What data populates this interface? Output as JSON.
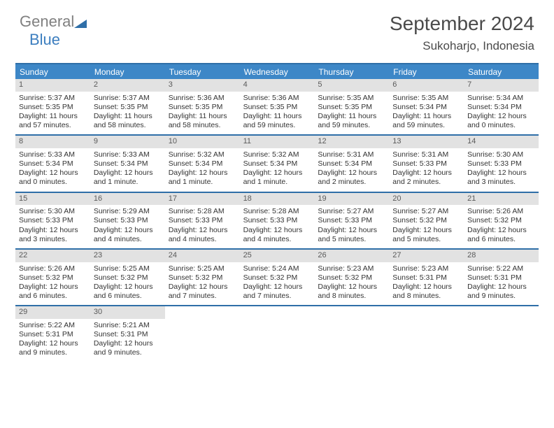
{
  "brand": {
    "part1": "General",
    "part2": "Blue"
  },
  "title": {
    "month": "September 2024",
    "location": "Sukoharjo, Indonesia"
  },
  "colors": {
    "rule": "#2f6fa8",
    "headerbg": "#3d87c7",
    "daynumbg": "#e2e2e2",
    "brandblue": "#3c7ebf",
    "brandgray": "#808080"
  },
  "day_names": [
    "Sunday",
    "Monday",
    "Tuesday",
    "Wednesday",
    "Thursday",
    "Friday",
    "Saturday"
  ],
  "weeks": [
    [
      {
        "n": "1",
        "sr": "Sunrise: 5:37 AM",
        "ss": "Sunset: 5:35 PM",
        "dl": "Daylight: 11 hours and 57 minutes."
      },
      {
        "n": "2",
        "sr": "Sunrise: 5:37 AM",
        "ss": "Sunset: 5:35 PM",
        "dl": "Daylight: 11 hours and 58 minutes."
      },
      {
        "n": "3",
        "sr": "Sunrise: 5:36 AM",
        "ss": "Sunset: 5:35 PM",
        "dl": "Daylight: 11 hours and 58 minutes."
      },
      {
        "n": "4",
        "sr": "Sunrise: 5:36 AM",
        "ss": "Sunset: 5:35 PM",
        "dl": "Daylight: 11 hours and 59 minutes."
      },
      {
        "n": "5",
        "sr": "Sunrise: 5:35 AM",
        "ss": "Sunset: 5:35 PM",
        "dl": "Daylight: 11 hours and 59 minutes."
      },
      {
        "n": "6",
        "sr": "Sunrise: 5:35 AM",
        "ss": "Sunset: 5:34 PM",
        "dl": "Daylight: 11 hours and 59 minutes."
      },
      {
        "n": "7",
        "sr": "Sunrise: 5:34 AM",
        "ss": "Sunset: 5:34 PM",
        "dl": "Daylight: 12 hours and 0 minutes."
      }
    ],
    [
      {
        "n": "8",
        "sr": "Sunrise: 5:33 AM",
        "ss": "Sunset: 5:34 PM",
        "dl": "Daylight: 12 hours and 0 minutes."
      },
      {
        "n": "9",
        "sr": "Sunrise: 5:33 AM",
        "ss": "Sunset: 5:34 PM",
        "dl": "Daylight: 12 hours and 1 minute."
      },
      {
        "n": "10",
        "sr": "Sunrise: 5:32 AM",
        "ss": "Sunset: 5:34 PM",
        "dl": "Daylight: 12 hours and 1 minute."
      },
      {
        "n": "11",
        "sr": "Sunrise: 5:32 AM",
        "ss": "Sunset: 5:34 PM",
        "dl": "Daylight: 12 hours and 1 minute."
      },
      {
        "n": "12",
        "sr": "Sunrise: 5:31 AM",
        "ss": "Sunset: 5:34 PM",
        "dl": "Daylight: 12 hours and 2 minutes."
      },
      {
        "n": "13",
        "sr": "Sunrise: 5:31 AM",
        "ss": "Sunset: 5:33 PM",
        "dl": "Daylight: 12 hours and 2 minutes."
      },
      {
        "n": "14",
        "sr": "Sunrise: 5:30 AM",
        "ss": "Sunset: 5:33 PM",
        "dl": "Daylight: 12 hours and 3 minutes."
      }
    ],
    [
      {
        "n": "15",
        "sr": "Sunrise: 5:30 AM",
        "ss": "Sunset: 5:33 PM",
        "dl": "Daylight: 12 hours and 3 minutes."
      },
      {
        "n": "16",
        "sr": "Sunrise: 5:29 AM",
        "ss": "Sunset: 5:33 PM",
        "dl": "Daylight: 12 hours and 4 minutes."
      },
      {
        "n": "17",
        "sr": "Sunrise: 5:28 AM",
        "ss": "Sunset: 5:33 PM",
        "dl": "Daylight: 12 hours and 4 minutes."
      },
      {
        "n": "18",
        "sr": "Sunrise: 5:28 AM",
        "ss": "Sunset: 5:33 PM",
        "dl": "Daylight: 12 hours and 4 minutes."
      },
      {
        "n": "19",
        "sr": "Sunrise: 5:27 AM",
        "ss": "Sunset: 5:33 PM",
        "dl": "Daylight: 12 hours and 5 minutes."
      },
      {
        "n": "20",
        "sr": "Sunrise: 5:27 AM",
        "ss": "Sunset: 5:32 PM",
        "dl": "Daylight: 12 hours and 5 minutes."
      },
      {
        "n": "21",
        "sr": "Sunrise: 5:26 AM",
        "ss": "Sunset: 5:32 PM",
        "dl": "Daylight: 12 hours and 6 minutes."
      }
    ],
    [
      {
        "n": "22",
        "sr": "Sunrise: 5:26 AM",
        "ss": "Sunset: 5:32 PM",
        "dl": "Daylight: 12 hours and 6 minutes."
      },
      {
        "n": "23",
        "sr": "Sunrise: 5:25 AM",
        "ss": "Sunset: 5:32 PM",
        "dl": "Daylight: 12 hours and 6 minutes."
      },
      {
        "n": "24",
        "sr": "Sunrise: 5:25 AM",
        "ss": "Sunset: 5:32 PM",
        "dl": "Daylight: 12 hours and 7 minutes."
      },
      {
        "n": "25",
        "sr": "Sunrise: 5:24 AM",
        "ss": "Sunset: 5:32 PM",
        "dl": "Daylight: 12 hours and 7 minutes."
      },
      {
        "n": "26",
        "sr": "Sunrise: 5:23 AM",
        "ss": "Sunset: 5:32 PM",
        "dl": "Daylight: 12 hours and 8 minutes."
      },
      {
        "n": "27",
        "sr": "Sunrise: 5:23 AM",
        "ss": "Sunset: 5:31 PM",
        "dl": "Daylight: 12 hours and 8 minutes."
      },
      {
        "n": "28",
        "sr": "Sunrise: 5:22 AM",
        "ss": "Sunset: 5:31 PM",
        "dl": "Daylight: 12 hours and 9 minutes."
      }
    ],
    [
      {
        "n": "29",
        "sr": "Sunrise: 5:22 AM",
        "ss": "Sunset: 5:31 PM",
        "dl": "Daylight: 12 hours and 9 minutes."
      },
      {
        "n": "30",
        "sr": "Sunrise: 5:21 AM",
        "ss": "Sunset: 5:31 PM",
        "dl": "Daylight: 12 hours and 9 minutes."
      },
      null,
      null,
      null,
      null,
      null
    ]
  ]
}
